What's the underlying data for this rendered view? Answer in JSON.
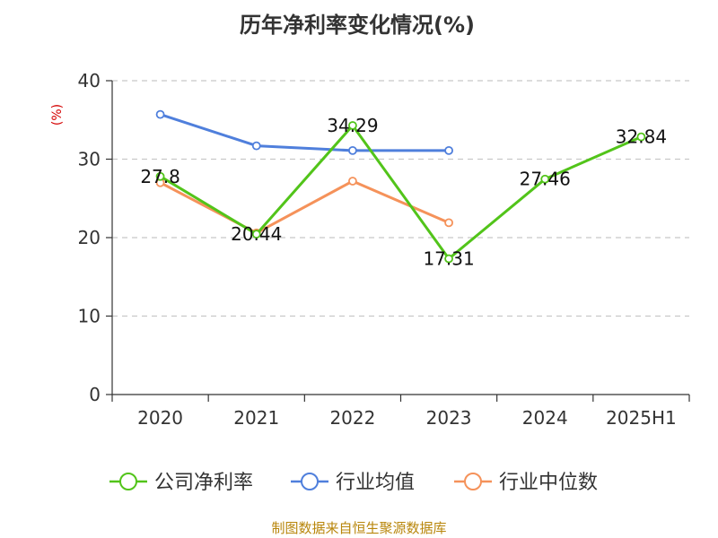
{
  "chart_data": {
    "type": "line",
    "title": "历年净利率变化情况(%)",
    "ylabel": "(%)",
    "xlabel": "",
    "categories": [
      "2020",
      "2021",
      "2022",
      "2023",
      "2024",
      "2025H1"
    ],
    "ylim": [
      0,
      40
    ],
    "yticks": [
      0,
      10,
      20,
      30,
      40
    ],
    "grid": true,
    "legend_position": "bottom",
    "series": [
      {
        "name": "公司净利率",
        "color": "#52c41a",
        "values": [
          27.8,
          20.44,
          34.29,
          17.31,
          27.46,
          32.84
        ],
        "labels": [
          "27.8",
          "20.44",
          "34.29",
          "17.31",
          "27.46",
          "32.84"
        ]
      },
      {
        "name": "行业均值",
        "color": "#4f7fdc",
        "values": [
          35.7,
          31.7,
          31.1,
          31.1,
          null,
          null
        ]
      },
      {
        "name": "行业中位数",
        "color": "#f5925a",
        "values": [
          27.0,
          20.6,
          27.2,
          21.9,
          null,
          null
        ]
      }
    ],
    "source": "制图数据来自恒生聚源数据库"
  }
}
